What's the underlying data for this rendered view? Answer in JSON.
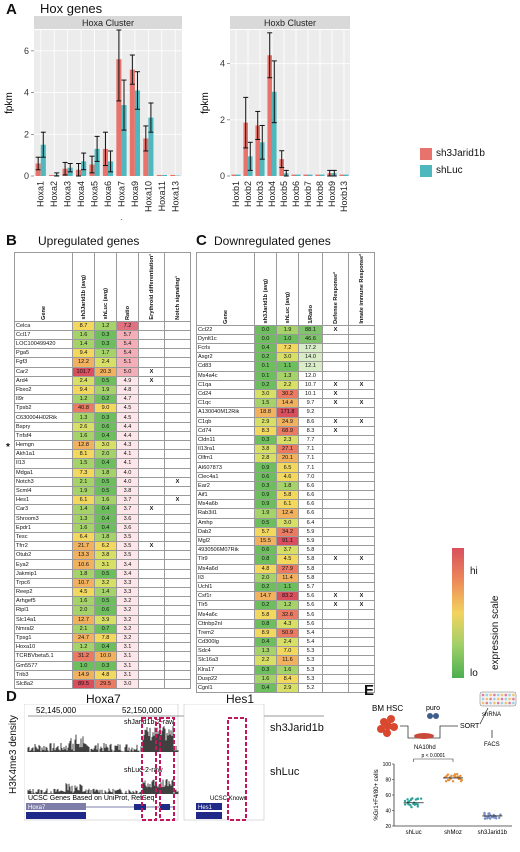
{
  "panelA": {
    "letter": "A",
    "title": "Hox genes",
    "ylabel": "fpkm",
    "legend": [
      {
        "name": "sh3Jarid1b",
        "color": "#e8736c"
      },
      {
        "name": "shLuc",
        "color": "#4fb8be"
      }
    ],
    "asterisk": "*"
  },
  "chart_data": [
    {
      "type": "bar",
      "title": "Hoxa Cluster",
      "ylabel": "fpkm",
      "ylim": [
        0,
        7
      ],
      "yticks": [
        0,
        2,
        4,
        6
      ],
      "ytick_labels": [
        "0",
        "2",
        "4",
        "6"
      ],
      "categories": [
        "Hoxa1",
        "Hoxa2",
        "Hoxa3",
        "Hoxa4",
        "Hoxa5",
        "Hoxa6",
        "Hoxa7",
        "Hoxa9",
        "Hoxa10",
        "Hoxa11",
        "Hoxa13"
      ],
      "series": [
        {
          "name": "sh3Jarid1b",
          "values": [
            0.6,
            0.05,
            0.35,
            0.3,
            0.55,
            1.3,
            5.6,
            5.1,
            1.8,
            0.05,
            0.05
          ],
          "errors": [
            0.3,
            0.05,
            0.3,
            0.3,
            0.4,
            0.8,
            2.0,
            0.7,
            0.6,
            0.05,
            0.02
          ]
        },
        {
          "name": "shLuc",
          "values": [
            1.5,
            0.05,
            0.4,
            0.7,
            1.3,
            0.7,
            3.4,
            4.1,
            2.8,
            0.05,
            0.02
          ],
          "errors": [
            0.6,
            0.1,
            0.2,
            0.4,
            0.6,
            0.5,
            1.2,
            0.9,
            0.7,
            0.05,
            0.02
          ]
        }
      ],
      "grid": true
    },
    {
      "type": "bar",
      "title": "Hoxb Cluster",
      "ylabel": "fpkm",
      "ylim": [
        0,
        5.2
      ],
      "yticks": [
        0,
        2,
        4
      ],
      "ytick_labels": [
        "0",
        "2",
        "4"
      ],
      "categories": [
        "Hoxb1",
        "Hoxb2",
        "Hoxb3",
        "Hoxb4",
        "Hoxb5",
        "Hoxb6",
        "Hoxb7",
        "Hoxb8",
        "Hoxb9",
        "Hoxb13"
      ],
      "series": [
        {
          "name": "sh3Jarid1b",
          "values": [
            0.05,
            1.9,
            1.8,
            4.3,
            0.6,
            0.05,
            0.05,
            0.05,
            0.1,
            0.05
          ],
          "errors": [
            0.05,
            0.9,
            0.5,
            0.8,
            0.3,
            0.05,
            0.05,
            0.05,
            0.1,
            0.05
          ]
        },
        {
          "name": "shLuc",
          "values": [
            0.05,
            0.7,
            1.2,
            3.0,
            0.1,
            0.05,
            0.05,
            0.05,
            0.1,
            0.05
          ],
          "errors": [
            0.05,
            0.5,
            0.6,
            1.1,
            0.1,
            0.05,
            0.05,
            0.05,
            0.1,
            0.05
          ]
        }
      ],
      "grid": true
    },
    {
      "type": "scatter",
      "ylabel": "%Gr1+F4/80+ cells",
      "categories": [
        "shLuc",
        "shMoz",
        "sh3Jarid1b"
      ],
      "pvalue": "p < 0.0001",
      "series": [
        {
          "name": "shLuc",
          "color": "#2aa198",
          "mean": 50,
          "spread": 6
        },
        {
          "name": "shMoz",
          "color": "#e8903c",
          "mean": 82,
          "spread": 5
        },
        {
          "name": "sh3Jarid1b",
          "color": "#7a8fc8",
          "mean": 33,
          "spread": 4
        }
      ],
      "ylim": [
        20,
        100
      ],
      "yticks": [
        20,
        40,
        60,
        80,
        100
      ],
      "ytick_labels": [
        "20",
        "40",
        "60",
        "80",
        "100"
      ]
    }
  ],
  "panelB": {
    "letter": "B",
    "title": "Upregulated genes",
    "headers": [
      "Gene",
      "sh3Jarid1b (avg)",
      "shLuc (avg)",
      "Ratio",
      "Erythroid differentiation¹",
      "Notch signaling¹"
    ],
    "asterisk": "*",
    "rows": [
      [
        "Celca",
        "8.7",
        "1.2",
        "7.2",
        "",
        ""
      ],
      [
        "Ccl17",
        "1.6",
        "0.3",
        "5.7",
        "",
        ""
      ],
      [
        "LOC100499420",
        "1.4",
        "0.3",
        "5.4",
        "",
        ""
      ],
      [
        "Pga5",
        "9.4",
        "1.7",
        "5.4",
        "",
        ""
      ],
      [
        "Fgf3",
        "12.2",
        "2.4",
        "5.1",
        "",
        ""
      ],
      [
        "Car2",
        "101.7",
        "20.3",
        "5.0",
        "X",
        ""
      ],
      [
        "Ard4",
        "2.4",
        "0.5",
        "4.9",
        "X",
        ""
      ],
      [
        "Fbxo2",
        "9.4",
        "1.9",
        "4.8",
        "",
        ""
      ],
      [
        "Il9r",
        "1.2",
        "0.2",
        "4.7",
        "",
        ""
      ],
      [
        "Tpsb2",
        "40.8",
        "9.0",
        "4.5",
        "",
        ""
      ],
      [
        "C630004H02Rik",
        "1.3",
        "0.3",
        "4.5",
        "",
        ""
      ],
      [
        "Bspry",
        "2.6",
        "0.6",
        "4.4",
        "",
        ""
      ],
      [
        "Tnfsf4",
        "1.6",
        "0.4",
        "4.4",
        "",
        ""
      ],
      [
        "Hemgn",
        "12.8",
        "3.0",
        "4.3",
        "",
        ""
      ],
      [
        "Akh1a1",
        "8.1",
        "2.0",
        "4.1",
        "",
        ""
      ],
      [
        "Il13",
        "1.5",
        "0.4",
        "4.1",
        "",
        ""
      ],
      [
        "Mdga1",
        "7.3",
        "1.8",
        "4.0",
        "",
        ""
      ],
      [
        "Notch3",
        "2.1",
        "0.5",
        "4.0",
        "",
        "X"
      ],
      [
        "Scml4",
        "1.9",
        "0.5",
        "3.8",
        "",
        ""
      ],
      [
        "Hes1",
        "6.1",
        "1.6",
        "3.7",
        "",
        "X"
      ],
      [
        "Car3",
        "1.4",
        "0.4",
        "3.7",
        "X",
        ""
      ],
      [
        "Shroom3",
        "1.3",
        "0.4",
        "3.6",
        "",
        ""
      ],
      [
        "Epdr1",
        "1.6",
        "0.4",
        "3.6",
        "",
        ""
      ],
      [
        "Tesc",
        "6.4",
        "1.8",
        "3.5",
        "",
        ""
      ],
      [
        "Tfrr2",
        "21.7",
        "6.2",
        "3.5",
        "X",
        ""
      ],
      [
        "Otub2",
        "13.3",
        "3.8",
        "3.5",
        "",
        ""
      ],
      [
        "Eya2",
        "10.6",
        "3.1",
        "3.4",
        "",
        ""
      ],
      [
        "Jakmip1",
        "1.8",
        "0.5",
        "3.4",
        "",
        ""
      ],
      [
        "Trpc6",
        "10.7",
        "3.2",
        "3.3",
        "",
        ""
      ],
      [
        "Reep2",
        "4.5",
        "1.4",
        "3.3",
        "",
        ""
      ],
      [
        "Arhgef5",
        "1.6",
        "0.5",
        "3.2",
        "",
        ""
      ],
      [
        "Ripl1",
        "2.0",
        "0.6",
        "3.2",
        "",
        ""
      ],
      [
        "Slc14a1",
        "12.7",
        "3.9",
        "3.2",
        "",
        ""
      ],
      [
        "Nmral2",
        "2.1",
        "0.7",
        "3.2",
        "",
        ""
      ],
      [
        "Tpsg1",
        "24.7",
        "7.8",
        "3.2",
        "",
        ""
      ],
      [
        "Hoxa10",
        "1.2",
        "0.4",
        "3.1",
        "",
        ""
      ],
      [
        "TCRBVbeta5.1",
        "31.2",
        "10.0",
        "3.1",
        "",
        ""
      ],
      [
        "Gm5577",
        "1.0",
        "0.3",
        "3.1",
        "",
        ""
      ],
      [
        "Trib3",
        "14.9",
        "4.8",
        "3.1",
        "",
        ""
      ],
      [
        "Slc8a2",
        "89.5",
        "29.5",
        "3.0",
        "",
        ""
      ]
    ]
  },
  "panelC": {
    "letter": "C",
    "title": "Downregulated genes",
    "headers": [
      "Gene",
      "sh3Jarid1b (avg)",
      "shLuc (avg)",
      "1/Ratio",
      "Defense Response²",
      "Innate immune Response²"
    ],
    "rows": [
      [
        "Ccl22",
        "0.0",
        "1.9",
        "88.1",
        "X",
        ""
      ],
      [
        "Dynlt1c",
        "0.0",
        "1.0",
        "46.6",
        "",
        ""
      ],
      [
        "Fcrls",
        "0.4",
        "7.2",
        "17.2",
        "",
        ""
      ],
      [
        "Asgr2",
        "0.2",
        "3.0",
        "14.0",
        "",
        ""
      ],
      [
        "Cd83",
        "0.1",
        "1.1",
        "12.1",
        "",
        ""
      ],
      [
        "Ms4a4c",
        "0.1",
        "1.3",
        "12.0",
        "",
        ""
      ],
      [
        "C1qa",
        "0.2",
        "2.2",
        "10.7",
        "X",
        "X"
      ],
      [
        "Cd24",
        "3.0",
        "30.2",
        "10.1",
        "X",
        ""
      ],
      [
        "C1qc",
        "1.5",
        "14.4",
        "9.7",
        "X",
        "X"
      ],
      [
        "A130040M12Rik",
        "18.8",
        "171.8",
        "9.2",
        "",
        ""
      ],
      [
        "C1qb",
        "2.9",
        "24.9",
        "8.6",
        "X",
        "X"
      ],
      [
        "Cd74",
        "8.3",
        "68.9",
        "8.3",
        "X",
        ""
      ],
      [
        "Cldn11",
        "0.3",
        "2.3",
        "7.7",
        "",
        ""
      ],
      [
        "Il13ra1",
        "3.8",
        "27.1",
        "7.1",
        "",
        ""
      ],
      [
        "Olfm1",
        "2.8",
        "20.1",
        "7.1",
        "",
        ""
      ],
      [
        "AI607873",
        "0.9",
        "6.5",
        "7.1",
        "",
        ""
      ],
      [
        "Clec4a1",
        "0.6",
        "4.6",
        "7.0",
        "",
        ""
      ],
      [
        "Ear2",
        "0.3",
        "1.8",
        "6.6",
        "",
        ""
      ],
      [
        "Aif1",
        "0.9",
        "5.8",
        "6.6",
        "",
        ""
      ],
      [
        "Ms4a6b",
        "0.9",
        "6.1",
        "6.6",
        "",
        ""
      ],
      [
        "Rab3il1",
        "1.9",
        "12.4",
        "6.6",
        "",
        ""
      ],
      [
        "Amhp",
        "0.5",
        "3.0",
        "6.4",
        "",
        ""
      ],
      [
        "Dab2",
        "5.7",
        "34.2",
        "5.9",
        "",
        ""
      ],
      [
        "Mgl2",
        "15.5",
        "91.1",
        "5.9",
        "",
        ""
      ],
      [
        "4930506M07Rik",
        "0.6",
        "3.7",
        "5.8",
        "",
        ""
      ],
      [
        "Tlr9",
        "0.8",
        "4.5",
        "5.8",
        "X",
        "X"
      ],
      [
        "Ms4a6d",
        "4.8",
        "27.9",
        "5.8",
        "",
        ""
      ],
      [
        "Il3",
        "2.0",
        "11.4",
        "5.8",
        "",
        ""
      ],
      [
        "Uchl1",
        "0.2",
        "1.1",
        "5.7",
        "",
        ""
      ],
      [
        "Csf1r",
        "14.7",
        "83.2",
        "5.6",
        "X",
        "X"
      ],
      [
        "Tlr5",
        "0.2",
        "1.2",
        "5.6",
        "X",
        "X"
      ],
      [
        "Ms4a6c",
        "5.8",
        "32.6",
        "5.6",
        "",
        ""
      ],
      [
        "Cttnbp2nl",
        "0.8",
        "4.3",
        "5.6",
        "",
        ""
      ],
      [
        "Trem2",
        "8.9",
        "50.9",
        "5.4",
        "",
        ""
      ],
      [
        "Cd300lg",
        "0.4",
        "2.4",
        "5.4",
        "",
        ""
      ],
      [
        "Sdc4",
        "1.3",
        "7.0",
        "5.3",
        "",
        ""
      ],
      [
        "Slc16a3",
        "2.2",
        "11.6",
        "5.3",
        "",
        ""
      ],
      [
        "Klra17",
        "0.3",
        "1.6",
        "5.3",
        "",
        ""
      ],
      [
        "Dusp22",
        "1.6",
        "8.4",
        "5.3",
        "",
        ""
      ],
      [
        "Cgnl1",
        "0.4",
        "2.9",
        "5.2",
        "",
        ""
      ]
    ]
  },
  "scale": {
    "label": "expression scale",
    "hi": "hi",
    "lo": "lo"
  },
  "panelD": {
    "letter": "D",
    "gene1": "Hoxa7",
    "gene2": "Hes1",
    "ylabel": "H3K4me3 density",
    "coord1": "52,145,000",
    "coord2": "52,150,000",
    "track1": "sh3Jarid1b",
    "track2": "shLuc",
    "track_top_label": "shJarid1b-2-raw",
    "track_mid_label": "shLuc-2-raw",
    "genes_label": "UCSC Genes Based on UniProt, RefSeq",
    "genes_label_right": "UCSC Known",
    "gene_box1": "Hoxa7",
    "gene_box2": "Hes1"
  },
  "panelE": {
    "letter": "E",
    "step1": "BM HSC",
    "step2": "NA10hd",
    "step3": "puro",
    "step4": "SORT",
    "step5": "shRNA",
    "step6": "FACS"
  }
}
